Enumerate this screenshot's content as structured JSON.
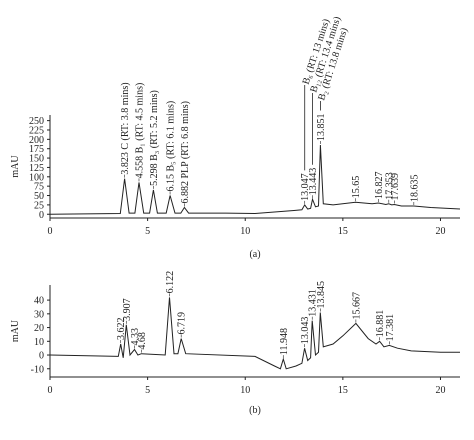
{
  "chart_data": [
    {
      "type": "line",
      "caption": "(a)",
      "ylabel": "mAU",
      "color": "#222222",
      "xlim": [
        0,
        21
      ],
      "xticks": [
        0,
        5,
        10,
        15,
        20
      ],
      "ylim": [
        -10,
        265
      ],
      "yticks": [
        0,
        25,
        50,
        75,
        100,
        125,
        150,
        175,
        200,
        225,
        250
      ],
      "x": [
        0,
        3.6,
        3.823,
        4.05,
        4.35,
        4.558,
        4.8,
        5.1,
        5.298,
        5.5,
        5.95,
        6.15,
        6.4,
        6.7,
        6.882,
        7.1,
        9,
        10.5,
        11.5,
        12.5,
        12.9,
        13.047,
        13.2,
        13.35,
        13.443,
        13.6,
        13.75,
        13.851,
        14.0,
        14.5,
        15.65,
        16.5,
        16.827,
        17.2,
        17.353,
        17.5,
        17.639,
        18,
        18.635,
        19.5,
        21
      ],
      "values": [
        0,
        2,
        95,
        3,
        3,
        85,
        3,
        3,
        65,
        3,
        3,
        50,
        3,
        3,
        18,
        3,
        3,
        2,
        6,
        10,
        12,
        25,
        14,
        16,
        40,
        20,
        22,
        185,
        28,
        25,
        32,
        28,
        30,
        26,
        28,
        25,
        26,
        22,
        22,
        18,
        14
      ],
      "peaks": [
        {
          "x": 3.823,
          "label": "3.823 C (RT: 3.8 mins)"
        },
        {
          "x": 4.558,
          "label": "4.558 B₁ (RT: 4.5 mins)"
        },
        {
          "x": 5.298,
          "label": "5.298 B₃ (RT: 5.2 mins)"
        },
        {
          "x": 6.15,
          "label": "6.15 B₅ (RT: 6.1 mins)"
        },
        {
          "x": 6.882,
          "label": "6.882 PLP (RT: 6.8 mins)"
        },
        {
          "x": 13.047,
          "label": "13.047",
          "name": "B₆ (RT: 13 mins)"
        },
        {
          "x": 13.443,
          "label": "13.443",
          "name": "B₁₂ (RT: 13.4 mins)"
        },
        {
          "x": 13.851,
          "label": "13.851",
          "name": "B₂ (RT: 13.8 mins)"
        },
        {
          "x": 15.65,
          "label": "15.65"
        },
        {
          "x": 16.827,
          "label": "16.827"
        },
        {
          "x": 17.353,
          "label": "17.353"
        },
        {
          "x": 17.639,
          "label": "17.639"
        },
        {
          "x": 18.635,
          "label": "18.635"
        }
      ]
    },
    {
      "type": "line",
      "caption": "(b)",
      "ylabel": "mAU",
      "color": "#222222",
      "xlim": [
        0,
        21
      ],
      "xticks": [
        0,
        5,
        10,
        15,
        20
      ],
      "ylim": [
        -16,
        51
      ],
      "yticks": [
        -10,
        0,
        10,
        20,
        30,
        40
      ],
      "x": [
        0,
        3.5,
        3.622,
        3.75,
        3.907,
        4.1,
        4.33,
        4.5,
        4.68,
        5.9,
        6.122,
        6.35,
        6.55,
        6.719,
        6.95,
        10.5,
        11.5,
        11.8,
        11.948,
        12.1,
        12.6,
        12.9,
        13.043,
        13.2,
        13.35,
        13.431,
        13.6,
        13.75,
        13.845,
        14.0,
        14.5,
        15,
        15.667,
        16.3,
        16.7,
        16.881,
        17.1,
        17.381,
        17.8,
        18.5,
        20,
        21
      ],
      "values": [
        0,
        -1,
        8,
        -2,
        22,
        0,
        4,
        0,
        1,
        0,
        42,
        1,
        1,
        12,
        1,
        -1,
        -8,
        -10,
        -3,
        -10,
        -8,
        -6,
        5,
        -4,
        -2,
        25,
        0,
        2,
        31,
        6,
        8,
        14,
        23,
        12,
        8,
        10,
        6,
        7,
        5,
        3,
        2,
        2
      ],
      "peaks": [
        {
          "x": 3.622,
          "label": "3.622"
        },
        {
          "x": 3.907,
          "label": "3.907"
        },
        {
          "x": 4.33,
          "label": "4.33"
        },
        {
          "x": 4.68,
          "label": "4.68"
        },
        {
          "x": 6.122,
          "label": "6.122"
        },
        {
          "x": 6.719,
          "label": "6.719"
        },
        {
          "x": 11.948,
          "label": "11.948"
        },
        {
          "x": 13.043,
          "label": "13.043"
        },
        {
          "x": 13.431,
          "label": "13.431"
        },
        {
          "x": 13.845,
          "label": "13.845"
        },
        {
          "x": 15.667,
          "label": "15.667"
        },
        {
          "x": 16.881,
          "label": "16.881"
        },
        {
          "x": 17.381,
          "label": "17.381"
        }
      ]
    }
  ]
}
